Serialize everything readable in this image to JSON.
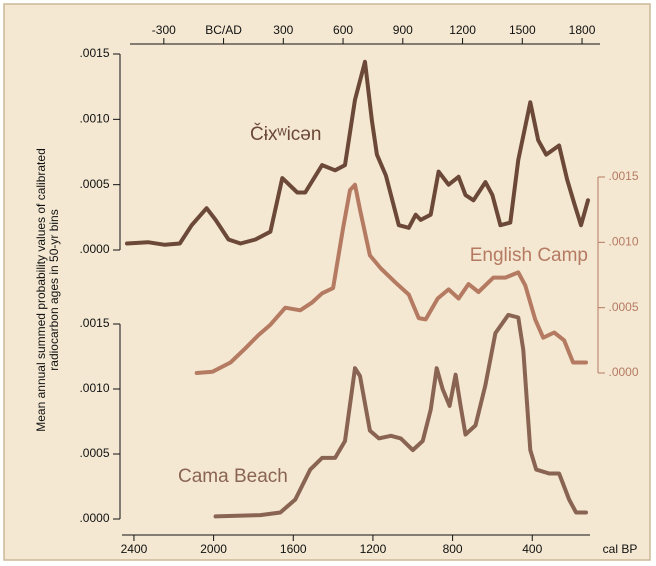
{
  "chart_data": {
    "type": "line",
    "xlabel": "cal BP",
    "x2label": "BC/AD",
    "ylabel": [
      "Mean annual summed probability values of calibrated",
      "radiocarbon ages in 50-yr bins"
    ],
    "xlim": [
      2460,
      110
    ],
    "xticks": [
      2400,
      2000,
      1600,
      1200,
      800,
      400
    ],
    "x2lim": [
      -510,
      1840
    ],
    "x2ticks": [
      -300,
      {
        "value": 0,
        "label": "BC/AD"
      },
      300,
      600,
      900,
      1200,
      1500,
      1800
    ],
    "ylim": [
      0,
      0.0015
    ],
    "yticks": [
      {
        "value": 0,
        "label": ".0000"
      },
      {
        "value": 0.0005,
        "label": ".0005"
      },
      {
        "value": 0.001,
        "label": ".0010"
      },
      {
        "value": 0.0015,
        "label": ".0015"
      }
    ],
    "y2lim": [
      0,
      0.0015
    ],
    "y2ticks": [
      {
        "value": 0,
        "label": ".0000"
      },
      {
        "value": 0.0005,
        "label": ".0005"
      },
      {
        "value": 0.001,
        "label": ".0010"
      },
      {
        "value": 0.0015,
        "label": ".0015"
      }
    ],
    "y3lim": [
      0,
      0.0015
    ],
    "y3ticks": [
      {
        "value": 0,
        "label": ".0000"
      },
      {
        "value": 0.0005,
        "label": ".0005"
      },
      {
        "value": 0.001,
        "label": ".0010"
      },
      {
        "value": 0.0015,
        "label": ".0015"
      }
    ],
    "series": [
      {
        "name": "Čɨxʷicən",
        "color": "#6b4838",
        "axis": "y3",
        "x": [
          2435,
          2330,
          2245,
          2170,
          2110,
          2035,
          1990,
          1925,
          1865,
          1790,
          1715,
          1655,
          1580,
          1540,
          1455,
          1390,
          1340,
          1290,
          1240,
          1205,
          1180,
          1135,
          1070,
          1020,
          985,
          960,
          910,
          870,
          820,
          770,
          735,
          695,
          635,
          600,
          560,
          510,
          470,
          410,
          370,
          330,
          265,
          225,
          190,
          155,
          120
        ],
        "values": [
          5e-05,
          6e-05,
          4e-05,
          5e-05,
          0.00019,
          0.00032,
          0.00023,
          8e-05,
          5e-05,
          8e-05,
          0.00014,
          0.00055,
          0.00044,
          0.00044,
          0.00065,
          0.00061,
          0.00065,
          0.00115,
          0.00144,
          0.00099,
          0.00073,
          0.00057,
          0.00019,
          0.00017,
          0.00027,
          0.00023,
          0.00027,
          0.0006,
          0.0005,
          0.00056,
          0.00042,
          0.00038,
          0.00052,
          0.00042,
          0.00019,
          0.00021,
          0.00069,
          0.00113,
          0.00084,
          0.00073,
          0.0008,
          0.00054,
          0.00036,
          0.00019,
          0.00038
        ]
      },
      {
        "name": "English Camp",
        "color": "#b57a62",
        "axis": "y2",
        "x": [
          2085,
          2005,
          1915,
          1840,
          1775,
          1715,
          1640,
          1565,
          1505,
          1455,
          1400,
          1350,
          1315,
          1290,
          1265,
          1215,
          1160,
          1085,
          1020,
          970,
          935,
          875,
          820,
          770,
          720,
          670,
          595,
          535,
          470,
          435,
          385,
          345,
          290,
          240,
          195,
          130
        ],
        "values": [
          0,
          1e-05,
          8e-05,
          0.00019,
          0.00029,
          0.00037,
          0.0005,
          0.00048,
          0.00054,
          0.00061,
          0.00065,
          0.00111,
          0.0014,
          0.00144,
          0.00125,
          0.0009,
          0.0008,
          0.00069,
          0.0006,
          0.00042,
          0.00041,
          0.00057,
          0.00064,
          0.00057,
          0.00068,
          0.00062,
          0.00073,
          0.00073,
          0.00077,
          0.00067,
          0.00041,
          0.00027,
          0.00031,
          0.00025,
          8e-05,
          8e-05
        ]
      },
      {
        "name": "Cama Beach",
        "color": "#8a6453",
        "axis": "y",
        "x": [
          1990,
          1765,
          1665,
          1590,
          1515,
          1455,
          1390,
          1340,
          1290,
          1265,
          1215,
          1170,
          1110,
          1060,
          1000,
          950,
          910,
          880,
          850,
          815,
          785,
          760,
          735,
          685,
          635,
          585,
          520,
          470,
          445,
          410,
          380,
          315,
          265,
          215,
          180,
          130
        ],
        "values": [
          2e-05,
          3e-05,
          5e-05,
          0.00015,
          0.00038,
          0.00047,
          0.00047,
          0.0006,
          0.00116,
          0.0011,
          0.00068,
          0.00062,
          0.00064,
          0.00062,
          0.00053,
          0.0006,
          0.00084,
          0.00116,
          0.001,
          0.00087,
          0.00111,
          0.00087,
          0.00065,
          0.00072,
          0.00103,
          0.00143,
          0.00157,
          0.00155,
          0.0013,
          0.00053,
          0.00038,
          0.00035,
          0.00035,
          0.00015,
          5e-05,
          5e-05
        ]
      }
    ]
  }
}
